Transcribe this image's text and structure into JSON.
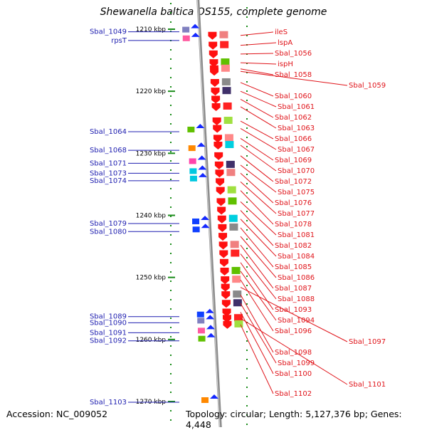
{
  "title": "Shewanella baltica OS155, complete genome",
  "footer": {
    "accession": "Accession: NC_009052",
    "topology": "Topology: circular",
    "length": "Length: 5,127,376 bp",
    "genes": "Genes: 4,448"
  },
  "colors": {
    "forward_label": "#1f1fb0",
    "reverse_label": "#e0141a",
    "backbone": "#8c8c8c",
    "tick": "#1a8c1a"
  },
  "scale": {
    "unit": "kbp",
    "ticks": [
      {
        "label": "1210 kbp",
        "kbp": 1210
      },
      {
        "label": "1220 kbp",
        "kbp": 1220
      },
      {
        "label": "1230 kbp",
        "kbp": 1230
      },
      {
        "label": "1240 kbp",
        "kbp": 1240
      },
      {
        "label": "1250 kbp",
        "kbp": 1250
      },
      {
        "label": "1260 kbp",
        "kbp": 1260
      },
      {
        "label": "1270 kbp",
        "kbp": 1270
      }
    ]
  },
  "forward_genes": [
    {
      "name": "Sbal_1049",
      "kbp": 1210.3
    },
    {
      "name": "rpsT",
      "kbp": 1211.7
    },
    {
      "name": "Sbal_1064",
      "kbp": 1226.4
    },
    {
      "name": "Sbal_1068",
      "kbp": 1229.4
    },
    {
      "name": "Sbal_1071",
      "kbp": 1231.5
    },
    {
      "name": "Sbal_1073",
      "kbp": 1233.1
    },
    {
      "name": "Sbal_1074",
      "kbp": 1234.3
    },
    {
      "name": "Sbal_1079",
      "kbp": 1241.2
    },
    {
      "name": "Sbal_1080",
      "kbp": 1242.5
    },
    {
      "name": "Sbal_1089",
      "kbp": 1256.2
    },
    {
      "name": "Sbal_1090",
      "kbp": 1257.2
    },
    {
      "name": "Sbal_1091",
      "kbp": 1258.8
    },
    {
      "name": "Sbal_1092",
      "kbp": 1260.1
    },
    {
      "name": "Sbal_1103",
      "kbp": 1270.0
    }
  ],
  "reverse_genes": [
    {
      "name": "ileS",
      "kbp": 1211.0
    },
    {
      "name": "lspA",
      "kbp": 1212.6
    },
    {
      "name": "Sbal_1056",
      "kbp": 1214.0
    },
    {
      "name": "ispH",
      "kbp": 1215.4
    },
    {
      "name": "Sbal_1058",
      "kbp": 1216.4
    },
    {
      "name": "Sbal_1059",
      "kbp": 1216.8
    },
    {
      "name": "Sbal_1060",
      "kbp": 1218.6
    },
    {
      "name": "Sbal_1061",
      "kbp": 1220.0
    },
    {
      "name": "Sbal_1062",
      "kbp": 1221.3
    },
    {
      "name": "Sbal_1063",
      "kbp": 1222.5
    },
    {
      "name": "Sbal_1066",
      "kbp": 1224.8
    },
    {
      "name": "Sbal_1067",
      "kbp": 1226.0
    },
    {
      "name": "Sbal_1069",
      "kbp": 1227.6
    },
    {
      "name": "Sbal_1070",
      "kbp": 1228.7
    },
    {
      "name": "Sbal_1072",
      "kbp": 1230.4
    },
    {
      "name": "Sbal_1075",
      "kbp": 1231.9
    },
    {
      "name": "Sbal_1076",
      "kbp": 1233.2
    },
    {
      "name": "Sbal_1077",
      "kbp": 1234.6
    },
    {
      "name": "Sbal_1078",
      "kbp": 1236.0
    },
    {
      "name": "Sbal_1081",
      "kbp": 1237.8
    },
    {
      "name": "Sbal_1082",
      "kbp": 1239.2
    },
    {
      "name": "Sbal_1084",
      "kbp": 1240.6
    },
    {
      "name": "Sbal_1085",
      "kbp": 1242.0
    },
    {
      "name": "Sbal_1086",
      "kbp": 1243.4
    },
    {
      "name": "Sbal_1087",
      "kbp": 1244.8
    },
    {
      "name": "Sbal_1088",
      "kbp": 1246.2
    },
    {
      "name": "Sbal_1093",
      "kbp": 1247.6
    },
    {
      "name": "Sbal_1094",
      "kbp": 1249.0
    },
    {
      "name": "Sbal_1096",
      "kbp": 1250.4
    },
    {
      "name": "Sbal_1097",
      "kbp": 1251.6
    },
    {
      "name": "Sbal_1098",
      "kbp": 1252.8
    },
    {
      "name": "Sbal_1099",
      "kbp": 1254.2
    },
    {
      "name": "Sbal_1100",
      "kbp": 1255.6
    },
    {
      "name": "Sbal_1101",
      "kbp": 1256.6
    },
    {
      "name": "Sbal_1102",
      "kbp": 1257.6
    }
  ]
}
